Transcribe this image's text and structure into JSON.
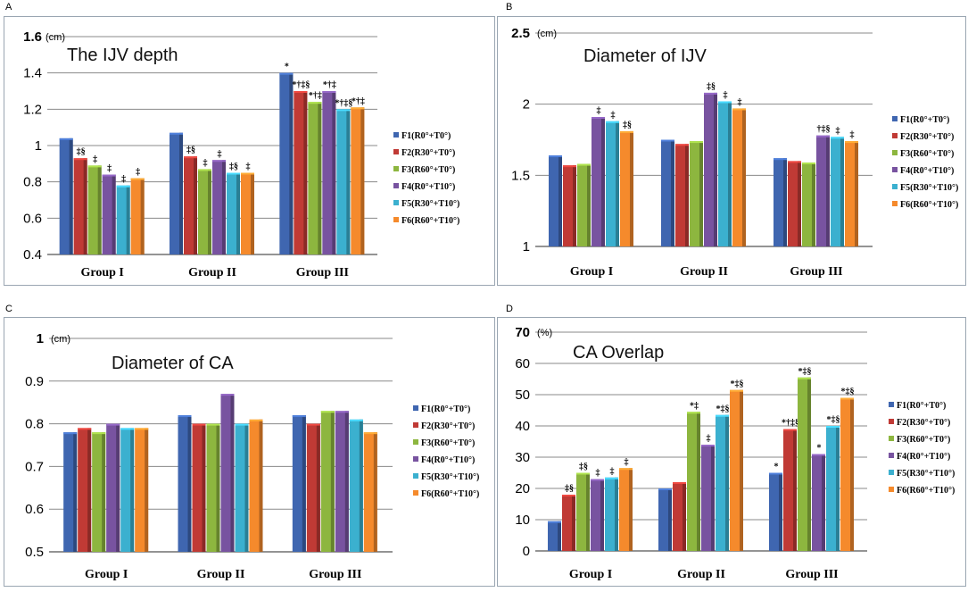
{
  "panels": [
    {
      "letter": "A",
      "title": "The IJV depth",
      "unit": "(cm)"
    },
    {
      "letter": "B",
      "title": "Diameter of IJV",
      "unit": "(cm)"
    },
    {
      "letter": "C",
      "title": "Diameter of CA",
      "unit": "(cm)"
    },
    {
      "letter": "D",
      "title": "CA Overlap",
      "unit": "(%)"
    }
  ],
  "colors": [
    "#3f66b0",
    "#c03a35",
    "#8db63f",
    "#7853a0",
    "#3bb0cf",
    "#f58a2c"
  ],
  "chart_data": [
    {
      "type": "bar",
      "title": "The IJV depth",
      "ylabel": "(cm)",
      "ylim": [
        0.4,
        1.6
      ],
      "yticks": [
        "0.4",
        "0.6",
        "0.8",
        "1",
        "1.2",
        "1.4",
        "1.6"
      ],
      "grid": true,
      "legend": "right",
      "categories": [
        "Group I",
        "Group II",
        "Group III"
      ],
      "series": [
        {
          "name": "F1(R0°+T0°)",
          "values": [
            1.04,
            1.07,
            1.4
          ]
        },
        {
          "name": "F2(R30°+T0°)",
          "values": [
            0.93,
            0.94,
            1.3
          ]
        },
        {
          "name": "F3(R60°+T0°)",
          "values": [
            0.89,
            0.87,
            1.24
          ]
        },
        {
          "name": "F4(R0°+T10°)",
          "values": [
            0.84,
            0.92,
            1.3
          ]
        },
        {
          "name": "F5(R30°+T10°)",
          "values": [
            0.78,
            0.85,
            1.2
          ]
        },
        {
          "name": "F6(R60°+T10°)",
          "values": [
            0.82,
            0.85,
            1.21
          ]
        }
      ],
      "annotations": [
        [
          "",
          "",
          "*"
        ],
        [
          "‡§",
          "‡§",
          "*†‡§"
        ],
        [
          "‡",
          "‡",
          "*†‡"
        ],
        [
          "‡",
          "‡",
          "*†‡"
        ],
        [
          "‡",
          "‡§",
          "*†‡§"
        ],
        [
          "‡",
          "‡",
          "*†‡"
        ]
      ]
    },
    {
      "type": "bar",
      "title": "Diameter of IJV",
      "ylabel": "(cm)",
      "ylim": [
        1,
        2.5
      ],
      "yticks": [
        "1",
        "1.5",
        "2",
        "2.5"
      ],
      "grid": true,
      "legend": "right",
      "categories": [
        "Group I",
        "Group II",
        "Group III"
      ],
      "series": [
        {
          "name": "F1(R0°+T0°)",
          "values": [
            1.64,
            1.75,
            1.62
          ]
        },
        {
          "name": "F2(R30°+T0°)",
          "values": [
            1.57,
            1.72,
            1.6
          ]
        },
        {
          "name": "F3(R60°+T0°)",
          "values": [
            1.58,
            1.74,
            1.59
          ]
        },
        {
          "name": "F4(R0°+T10°)",
          "values": [
            1.91,
            2.08,
            1.78
          ]
        },
        {
          "name": "F5(R30°+T10°)",
          "values": [
            1.88,
            2.02,
            1.77
          ]
        },
        {
          "name": "F6(R60°+T10°)",
          "values": [
            1.81,
            1.97,
            1.74
          ]
        }
      ],
      "annotations": [
        [
          "",
          "",
          ""
        ],
        [
          "",
          "",
          ""
        ],
        [
          "",
          "",
          ""
        ],
        [
          "‡",
          "‡§",
          "†‡§"
        ],
        [
          "‡",
          "‡",
          "‡"
        ],
        [
          "‡§",
          "‡",
          "‡"
        ]
      ]
    },
    {
      "type": "bar",
      "title": "Diameter of CA",
      "ylabel": "(cm)",
      "ylim": [
        0.5,
        1
      ],
      "yticks": [
        "0.5",
        "0.6",
        "0.7",
        "0.8",
        "0.9",
        "1"
      ],
      "grid": true,
      "legend": "right",
      "categories": [
        "Group I",
        "Group II",
        "Group III"
      ],
      "series": [
        {
          "name": "F1(R0°+T0°)",
          "values": [
            0.78,
            0.82,
            0.82
          ]
        },
        {
          "name": "F2(R30°+T0°)",
          "values": [
            0.79,
            0.8,
            0.8
          ]
        },
        {
          "name": "F3(R60°+T0°)",
          "values": [
            0.78,
            0.8,
            0.83
          ]
        },
        {
          "name": "F4(R0°+T10°)",
          "values": [
            0.8,
            0.87,
            0.83
          ]
        },
        {
          "name": "F5(R30°+T10°)",
          "values": [
            0.79,
            0.8,
            0.81
          ]
        },
        {
          "name": "F6(R60°+T10°)",
          "values": [
            0.79,
            0.81,
            0.78
          ]
        }
      ],
      "annotations": []
    },
    {
      "type": "bar",
      "title": "CA Overlap",
      "ylabel": "(%)",
      "ylim": [
        0,
        70
      ],
      "yticks": [
        "0",
        "10",
        "20",
        "30",
        "40",
        "50",
        "60",
        "70"
      ],
      "grid": true,
      "legend": "right",
      "categories": [
        "Group I",
        "Group II",
        "Group III"
      ],
      "series": [
        {
          "name": "F1(R0°+T0°)",
          "values": [
            9.5,
            20,
            25
          ]
        },
        {
          "name": "F2(R30°+T0°)",
          "values": [
            18,
            22,
            39
          ]
        },
        {
          "name": "F3(R60°+T0°)",
          "values": [
            25,
            44.5,
            55.5
          ]
        },
        {
          "name": "F4(R0°+T10°)",
          "values": [
            23,
            34,
            31
          ]
        },
        {
          "name": "F5(R30°+T10°)",
          "values": [
            23.5,
            43.5,
            40
          ]
        },
        {
          "name": "F6(R60°+T10°)",
          "values": [
            26.5,
            51.5,
            49
          ]
        }
      ],
      "annotations": [
        [
          "",
          "",
          "*"
        ],
        [
          "‡§",
          "",
          "*†‡§"
        ],
        [
          "‡§",
          "*‡",
          "*‡§"
        ],
        [
          "‡",
          "‡",
          "*"
        ],
        [
          "‡",
          "*‡§",
          "*‡§"
        ],
        [
          "‡",
          "*‡§",
          "*‡§"
        ]
      ]
    }
  ]
}
